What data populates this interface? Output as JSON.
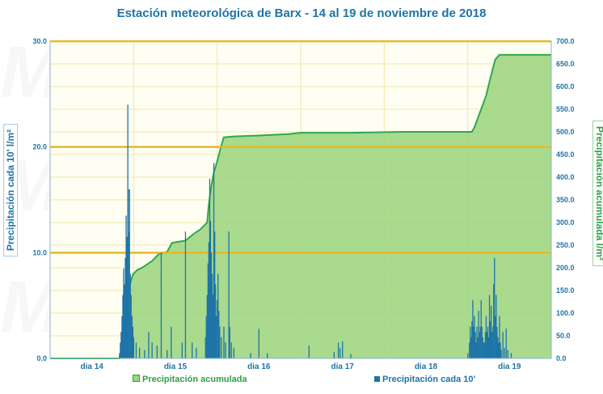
{
  "chart_data": {
    "type": "bar",
    "title": "Estación meteorológica de Barx - 14 al 19 de noviembre de 2018",
    "xlabel": "",
    "ylabel_left": "Precipitación cada 10' l/m²",
    "ylabel_right": "Precipitación acumulada l/m²",
    "x_range": [
      14,
      20
    ],
    "x_ticks": [
      {
        "label": "dia 14",
        "x": 14.5
      },
      {
        "label": "dia 15",
        "x": 15.5
      },
      {
        "label": "dia 16",
        "x": 16.5
      },
      {
        "label": "dia 17",
        "x": 17.5
      },
      {
        "label": "dia 18",
        "x": 18.5
      },
      {
        "label": "dia 19",
        "x": 19.5
      }
    ],
    "ylim_left": [
      0,
      30
    ],
    "yticks_left": [
      "0.0",
      "10.0",
      "20.0",
      "30.0"
    ],
    "ylim_right": [
      0,
      700
    ],
    "yticks_right": [
      "0.0",
      "50.0",
      "100.0",
      "150.0",
      "200.0",
      "250.0",
      "300.0",
      "350.0",
      "400.0",
      "450.0",
      "500.0",
      "550.0",
      "600.0",
      "650.0",
      "700.0"
    ],
    "grid": true,
    "reference_lines_left": [
      10,
      20,
      30
    ],
    "legend_position": "bottom",
    "series": [
      {
        "name": "Precipitación acumulada",
        "type": "area",
        "color": "#9ad47b",
        "line_color": "#2fa84a",
        "points": [
          [
            14.0,
            0
          ],
          [
            14.83,
            0
          ],
          [
            14.86,
            20
          ],
          [
            14.89,
            60
          ],
          [
            14.92,
            110
          ],
          [
            14.95,
            160
          ],
          [
            14.99,
            185
          ],
          [
            15.04,
            195
          ],
          [
            15.1,
            200
          ],
          [
            15.18,
            210
          ],
          [
            15.22,
            215
          ],
          [
            15.3,
            230
          ],
          [
            15.4,
            235
          ],
          [
            15.46,
            255
          ],
          [
            15.62,
            260
          ],
          [
            15.72,
            275
          ],
          [
            15.8,
            285
          ],
          [
            15.88,
            300
          ],
          [
            15.9,
            340
          ],
          [
            15.93,
            380
          ],
          [
            15.96,
            410
          ],
          [
            16.0,
            435
          ],
          [
            16.05,
            470
          ],
          [
            16.08,
            488
          ],
          [
            16.2,
            490
          ],
          [
            16.5,
            492
          ],
          [
            16.85,
            495
          ],
          [
            17.0,
            498
          ],
          [
            17.6,
            498
          ],
          [
            18.2,
            500
          ],
          [
            19.05,
            500
          ],
          [
            19.08,
            510
          ],
          [
            19.12,
            530
          ],
          [
            19.18,
            560
          ],
          [
            19.22,
            580
          ],
          [
            19.26,
            610
          ],
          [
            19.3,
            640
          ],
          [
            19.33,
            660
          ],
          [
            19.38,
            670
          ],
          [
            20.0,
            670
          ]
        ]
      },
      {
        "name": "Precipitación cada 10'",
        "type": "bar",
        "color": "#1f74a7",
        "points": [
          [
            14.83,
            0.5
          ],
          [
            14.84,
            1.5
          ],
          [
            14.85,
            2.5
          ],
          [
            14.86,
            4
          ],
          [
            14.87,
            6
          ],
          [
            14.88,
            8.5
          ],
          [
            14.89,
            7
          ],
          [
            14.9,
            9.5
          ],
          [
            14.91,
            13.5
          ],
          [
            14.92,
            11.5
          ],
          [
            14.925,
            10
          ],
          [
            14.93,
            24
          ],
          [
            14.935,
            16
          ],
          [
            14.94,
            12
          ],
          [
            14.95,
            16
          ],
          [
            14.96,
            8
          ],
          [
            14.97,
            6
          ],
          [
            14.98,
            4
          ],
          [
            14.99,
            3
          ],
          [
            15.0,
            2
          ],
          [
            15.03,
            1.5
          ],
          [
            15.07,
            1
          ],
          [
            15.13,
            0.8
          ],
          [
            15.18,
            2.5
          ],
          [
            15.22,
            1.5
          ],
          [
            15.28,
            1.2
          ],
          [
            15.33,
            10
          ],
          [
            15.4,
            0.8
          ],
          [
            15.45,
            3
          ],
          [
            15.58,
            1.5
          ],
          [
            15.62,
            12
          ],
          [
            15.7,
            1.5
          ],
          [
            15.75,
            1
          ],
          [
            15.86,
            2
          ],
          [
            15.87,
            4
          ],
          [
            15.88,
            6
          ],
          [
            15.89,
            9
          ],
          [
            15.9,
            11
          ],
          [
            15.91,
            17
          ],
          [
            15.92,
            13
          ],
          [
            15.93,
            10
          ],
          [
            15.94,
            8
          ],
          [
            15.95,
            6
          ],
          [
            15.96,
            18.5
          ],
          [
            15.97,
            12
          ],
          [
            15.98,
            7
          ],
          [
            15.99,
            4
          ],
          [
            16.0,
            5.5
          ],
          [
            16.01,
            8
          ],
          [
            16.02,
            4.5
          ],
          [
            16.03,
            3
          ],
          [
            16.05,
            2
          ],
          [
            16.08,
            3
          ],
          [
            16.1,
            1.5
          ],
          [
            16.14,
            12
          ],
          [
            16.15,
            3
          ],
          [
            16.17,
            1.5
          ],
          [
            16.2,
            1
          ],
          [
            16.4,
            0.5
          ],
          [
            16.5,
            2.8
          ],
          [
            16.6,
            0.5
          ],
          [
            17.1,
            1.2
          ],
          [
            17.4,
            0.6
          ],
          [
            17.45,
            1.5
          ],
          [
            17.47,
            1
          ],
          [
            17.5,
            1.6
          ],
          [
            17.6,
            0.4
          ],
          [
            19.0,
            0.5
          ],
          [
            19.02,
            1.5
          ],
          [
            19.03,
            3
          ],
          [
            19.04,
            2
          ],
          [
            19.05,
            3.5
          ],
          [
            19.06,
            5.5
          ],
          [
            19.07,
            3
          ],
          [
            19.08,
            4
          ],
          [
            19.09,
            2.5
          ],
          [
            19.1,
            1.5
          ],
          [
            19.11,
            3
          ],
          [
            19.12,
            2
          ],
          [
            19.13,
            4.5
          ],
          [
            19.14,
            2.5
          ],
          [
            19.15,
            3
          ],
          [
            19.16,
            5.5
          ],
          [
            19.17,
            3
          ],
          [
            19.18,
            2
          ],
          [
            19.19,
            1.5
          ],
          [
            19.2,
            1.5
          ],
          [
            19.21,
            2.5
          ],
          [
            19.22,
            4
          ],
          [
            19.23,
            2.5
          ],
          [
            19.24,
            3
          ],
          [
            19.25,
            2
          ],
          [
            19.26,
            6
          ],
          [
            19.27,
            3.5
          ],
          [
            19.28,
            5
          ],
          [
            19.29,
            2.5
          ],
          [
            19.3,
            3
          ],
          [
            19.31,
            7
          ],
          [
            19.32,
            9.5
          ],
          [
            19.33,
            4
          ],
          [
            19.34,
            6
          ],
          [
            19.35,
            3
          ],
          [
            19.36,
            2
          ],
          [
            19.37,
            1.5
          ],
          [
            19.38,
            4
          ],
          [
            19.39,
            1.5
          ],
          [
            19.4,
            0.8
          ],
          [
            19.42,
            2.5
          ],
          [
            19.44,
            1
          ],
          [
            19.46,
            2.8
          ],
          [
            19.48,
            0.8
          ],
          [
            19.52,
            0.5
          ]
        ]
      }
    ]
  }
}
